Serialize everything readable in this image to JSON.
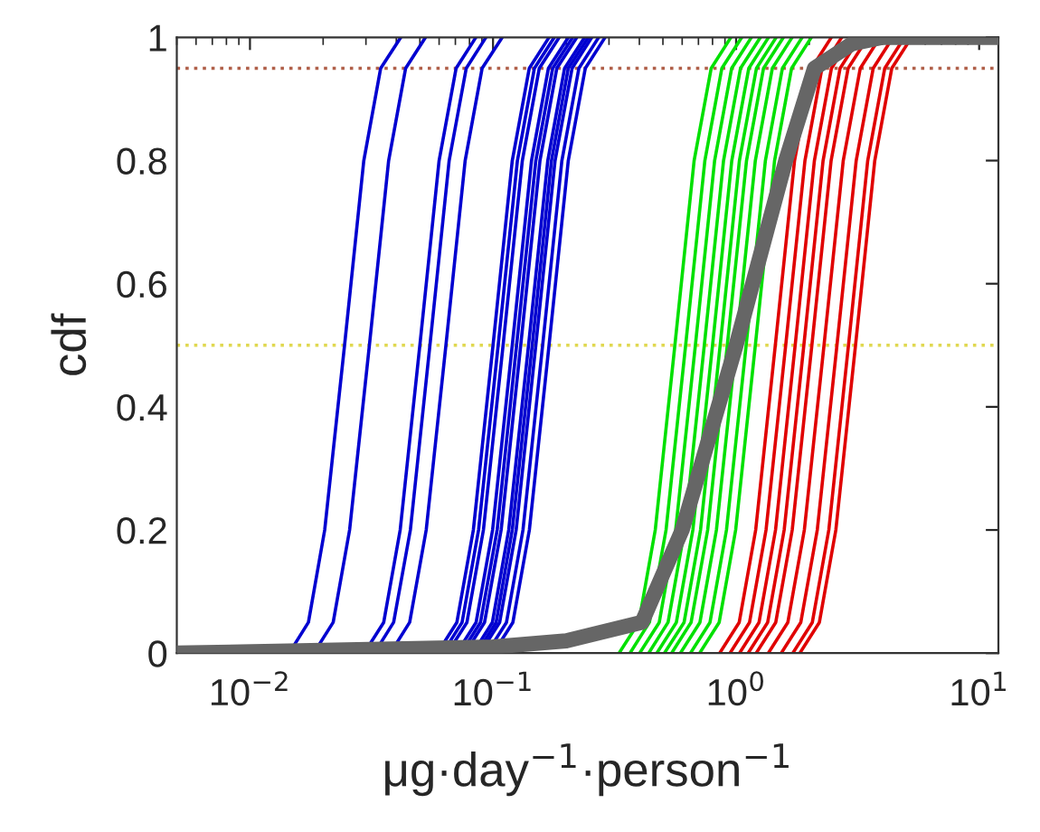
{
  "chart_data": {
    "type": "line",
    "xlabel": "μg·day$^{−1}$·person$^{−1}$",
    "ylabel": "cdf",
    "log": "x",
    "grid": false,
    "legend": false,
    "marker": "none",
    "line_style": "solid",
    "xlim": [
      0.005,
      12
    ],
    "ylim": [
      0,
      1
    ],
    "xticks": [
      {
        "value": 0.01,
        "label": "10$^{−2}$"
      },
      {
        "value": 0.1,
        "label": "10$^{−1}$"
      },
      {
        "value": 1,
        "label": "10$^{0}$"
      },
      {
        "value": 10,
        "label": "10$^{1}$"
      }
    ],
    "yticks": [
      0,
      0.2,
      0.4,
      0.6,
      0.8,
      1
    ],
    "ref_lines": [
      {
        "axis": "y",
        "value": 0.95,
        "label": null,
        "color": "#b0604a",
        "line_style": "dotted"
      },
      {
        "axis": "y",
        "value": 0.5,
        "label": null,
        "color": "#e0d850",
        "line_style": "dotted"
      }
    ],
    "series": [
      {
        "color": "#0000d0",
        "x": [
          0.0145,
          0.0174,
          0.0203,
          0.0245,
          0.0294,
          0.0345,
          0.0417
        ],
        "values": [
          0,
          0.05,
          0.2,
          0.5,
          0.8,
          0.95,
          1
        ]
      },
      {
        "color": "#0000d0",
        "x": [
          0.0183,
          0.022,
          0.0257,
          0.031,
          0.0372,
          0.0437,
          0.0527
        ],
        "values": [
          0,
          0.05,
          0.2,
          0.5,
          0.8,
          0.95,
          1
        ]
      },
      {
        "color": "#0000d0",
        "x": [
          0.0295,
          0.0355,
          0.0415,
          0.05,
          0.06,
          0.0705,
          0.085
        ],
        "values": [
          0,
          0.05,
          0.2,
          0.5,
          0.8,
          0.95,
          1
        ]
      },
      {
        "color": "#0000d0",
        "x": [
          0.0325,
          0.039,
          0.0457,
          0.055,
          0.066,
          0.0776,
          0.0935
        ],
        "values": [
          0,
          0.05,
          0.2,
          0.5,
          0.8,
          0.95,
          1
        ]
      },
      {
        "color": "#0000d0",
        "x": [
          0.0378,
          0.0454,
          0.0531,
          0.064,
          0.0768,
          0.0902,
          0.109
        ],
        "values": [
          0,
          0.05,
          0.2,
          0.5,
          0.8,
          0.95,
          1
        ]
      },
      {
        "color": "#0000d0",
        "x": [
          0.059,
          0.071,
          0.083,
          0.1,
          0.12,
          0.141,
          0.17
        ],
        "values": [
          0,
          0.05,
          0.2,
          0.5,
          0.8,
          0.95,
          1
        ]
      },
      {
        "color": "#0000d0",
        "x": [
          0.062,
          0.0746,
          0.0872,
          0.105,
          0.126,
          0.148,
          0.1785
        ],
        "values": [
          0,
          0.05,
          0.2,
          0.5,
          0.8,
          0.95,
          1
        ]
      },
      {
        "color": "#0000d0",
        "x": [
          0.0649,
          0.0781,
          0.0913,
          0.11,
          0.132,
          0.155,
          0.187
        ],
        "values": [
          0,
          0.05,
          0.2,
          0.5,
          0.8,
          0.95,
          1
        ]
      },
      {
        "color": "#0000d0",
        "x": [
          0.0708,
          0.0852,
          0.0996,
          0.12,
          0.144,
          0.169,
          0.204
        ],
        "values": [
          0,
          0.05,
          0.2,
          0.5,
          0.8,
          0.95,
          1
        ]
      },
      {
        "color": "#0000d0",
        "x": [
          0.0738,
          0.0888,
          0.104,
          0.125,
          0.15,
          0.176,
          0.2125
        ],
        "values": [
          0,
          0.05,
          0.2,
          0.5,
          0.8,
          0.95,
          1
        ]
      },
      {
        "color": "#0000d0",
        "x": [
          0.0767,
          0.0923,
          0.108,
          0.13,
          0.156,
          0.183,
          0.221
        ],
        "values": [
          0,
          0.05,
          0.2,
          0.5,
          0.8,
          0.95,
          1
        ]
      },
      {
        "color": "#0000d0",
        "x": [
          0.0826,
          0.0994,
          0.116,
          0.14,
          0.168,
          0.197,
          0.238
        ],
        "values": [
          0,
          0.05,
          0.2,
          0.5,
          0.8,
          0.95,
          1
        ]
      },
      {
        "color": "#0000d0",
        "x": [
          0.0856,
          0.103,
          0.12,
          0.145,
          0.174,
          0.204,
          0.2465
        ],
        "values": [
          0,
          0.05,
          0.2,
          0.5,
          0.8,
          0.95,
          1
        ]
      },
      {
        "color": "#0000d0",
        "x": [
          0.0885,
          0.1065,
          0.1245,
          0.15,
          0.18,
          0.2115,
          0.255
        ],
        "values": [
          0,
          0.05,
          0.2,
          0.5,
          0.8,
          0.95,
          1
        ]
      },
      {
        "color": "#0000d0",
        "x": [
          0.0944,
          0.1136,
          0.1328,
          0.16,
          0.192,
          0.2256,
          0.272
        ],
        "values": [
          0,
          0.05,
          0.2,
          0.5,
          0.8,
          0.95,
          1
        ]
      },
      {
        "color": "#0000d0",
        "x": [
          0.1003,
          0.1207,
          0.1411,
          0.17,
          0.204,
          0.2397,
          0.289
        ],
        "values": [
          0,
          0.05,
          0.2,
          0.5,
          0.8,
          0.95,
          1
        ]
      },
      {
        "color": "#00e000",
        "x": [
          0.33,
          0.398,
          0.465,
          0.56,
          0.672,
          0.79,
          0.952
        ],
        "values": [
          0,
          0.05,
          0.2,
          0.5,
          0.8,
          0.95,
          1
        ]
      },
      {
        "color": "#00e000",
        "x": [
          0.366,
          0.44,
          0.515,
          0.62,
          0.744,
          0.874,
          1.054
        ],
        "values": [
          0,
          0.05,
          0.2,
          0.5,
          0.8,
          0.95,
          1
        ]
      },
      {
        "color": "#00e000",
        "x": [
          0.401,
          0.483,
          0.564,
          0.68,
          0.816,
          0.959,
          1.156
        ],
        "values": [
          0,
          0.05,
          0.2,
          0.5,
          0.8,
          0.95,
          1
        ]
      },
      {
        "color": "#00e000",
        "x": [
          0.437,
          0.525,
          0.614,
          0.74,
          0.888,
          1.043,
          1.258
        ],
        "values": [
          0,
          0.05,
          0.2,
          0.5,
          0.8,
          0.95,
          1
        ]
      },
      {
        "color": "#00e000",
        "x": [
          0.472,
          0.568,
          0.664,
          0.8,
          0.96,
          1.128,
          1.36
        ],
        "values": [
          0,
          0.05,
          0.2,
          0.5,
          0.8,
          0.95,
          1
        ]
      },
      {
        "color": "#00e000",
        "x": [
          0.507,
          0.611,
          0.714,
          0.86,
          1.032,
          1.213,
          1.462
        ],
        "values": [
          0,
          0.05,
          0.2,
          0.5,
          0.8,
          0.95,
          1
        ]
      },
      {
        "color": "#00e000",
        "x": [
          0.543,
          0.653,
          0.764,
          0.92,
          1.104,
          1.297,
          1.564
        ],
        "values": [
          0,
          0.05,
          0.2,
          0.5,
          0.8,
          0.95,
          1
        ]
      },
      {
        "color": "#00e000",
        "x": [
          0.59,
          0.71,
          0.83,
          1.0,
          1.2,
          1.41,
          1.7
        ],
        "values": [
          0,
          0.05,
          0.2,
          0.5,
          0.8,
          0.95,
          1
        ]
      },
      {
        "color": "#00e000",
        "x": [
          0.649,
          0.781,
          0.913,
          1.1,
          1.32,
          1.551,
          1.87
        ],
        "values": [
          0,
          0.05,
          0.2,
          0.5,
          0.8,
          0.95,
          1
        ]
      },
      {
        "color": "#00e000",
        "x": [
          0.708,
          0.852,
          0.996,
          1.2,
          1.44,
          1.692,
          2.04
        ],
        "values": [
          0,
          0.05,
          0.2,
          0.5,
          0.8,
          0.95,
          1
        ]
      },
      {
        "color": "#e00000",
        "x": [
          0.856,
          1.03,
          1.204,
          1.45,
          1.74,
          2.045,
          2.465
        ],
        "values": [
          0,
          0.05,
          0.2,
          0.5,
          0.8,
          0.95,
          1
        ]
      },
      {
        "color": "#e00000",
        "x": [
          0.944,
          1.136,
          1.328,
          1.6,
          1.92,
          2.256,
          2.72
        ],
        "values": [
          0,
          0.05,
          0.2,
          0.5,
          0.8,
          0.95,
          1
        ]
      },
      {
        "color": "#e00000",
        "x": [
          1.033,
          1.243,
          1.453,
          1.75,
          2.1,
          2.468,
          2.975
        ],
        "values": [
          0,
          0.05,
          0.2,
          0.5,
          0.8,
          0.95,
          1
        ]
      },
      {
        "color": "#e00000",
        "x": [
          1.121,
          1.349,
          1.577,
          1.9,
          2.28,
          2.679,
          3.23
        ],
        "values": [
          0,
          0.05,
          0.2,
          0.5,
          0.8,
          0.95,
          1
        ]
      },
      {
        "color": "#e00000",
        "x": [
          1.21,
          1.456,
          1.702,
          2.05,
          2.46,
          2.891,
          3.485
        ],
        "values": [
          0,
          0.05,
          0.2,
          0.5,
          0.8,
          0.95,
          1
        ]
      },
      {
        "color": "#e00000",
        "x": [
          1.357,
          1.633,
          1.909,
          2.3,
          2.76,
          3.243,
          3.91
        ],
        "values": [
          0,
          0.05,
          0.2,
          0.5,
          0.8,
          0.95,
          1
        ]
      },
      {
        "color": "#e00000",
        "x": [
          1.534,
          1.846,
          2.158,
          2.6,
          3.12,
          3.666,
          4.42
        ],
        "values": [
          0,
          0.05,
          0.2,
          0.5,
          0.8,
          0.95,
          1
        ]
      },
      {
        "color": "#e00000",
        "x": [
          1.711,
          2.059,
          2.407,
          2.9,
          3.48,
          4.089,
          4.93
        ],
        "values": [
          0,
          0.05,
          0.2,
          0.5,
          0.8,
          0.95,
          1
        ]
      },
      {
        "color": "#e00000",
        "x": [
          1.829,
          2.201,
          2.573,
          3.1,
          3.72,
          4.371,
          5.27
        ],
        "values": [
          0,
          0.05,
          0.2,
          0.5,
          0.8,
          0.95,
          1
        ]
      },
      {
        "color": "#666666",
        "x": [
          0.005,
          0.1,
          0.2,
          0.41,
          0.6,
          1.0,
          1.6,
          2.1,
          3.0,
          4.0,
          12
        ],
        "values": [
          0,
          0.01,
          0.02,
          0.05,
          0.2,
          0.5,
          0.8,
          0.95,
          0.99,
          1,
          1
        ]
      }
    ]
  }
}
